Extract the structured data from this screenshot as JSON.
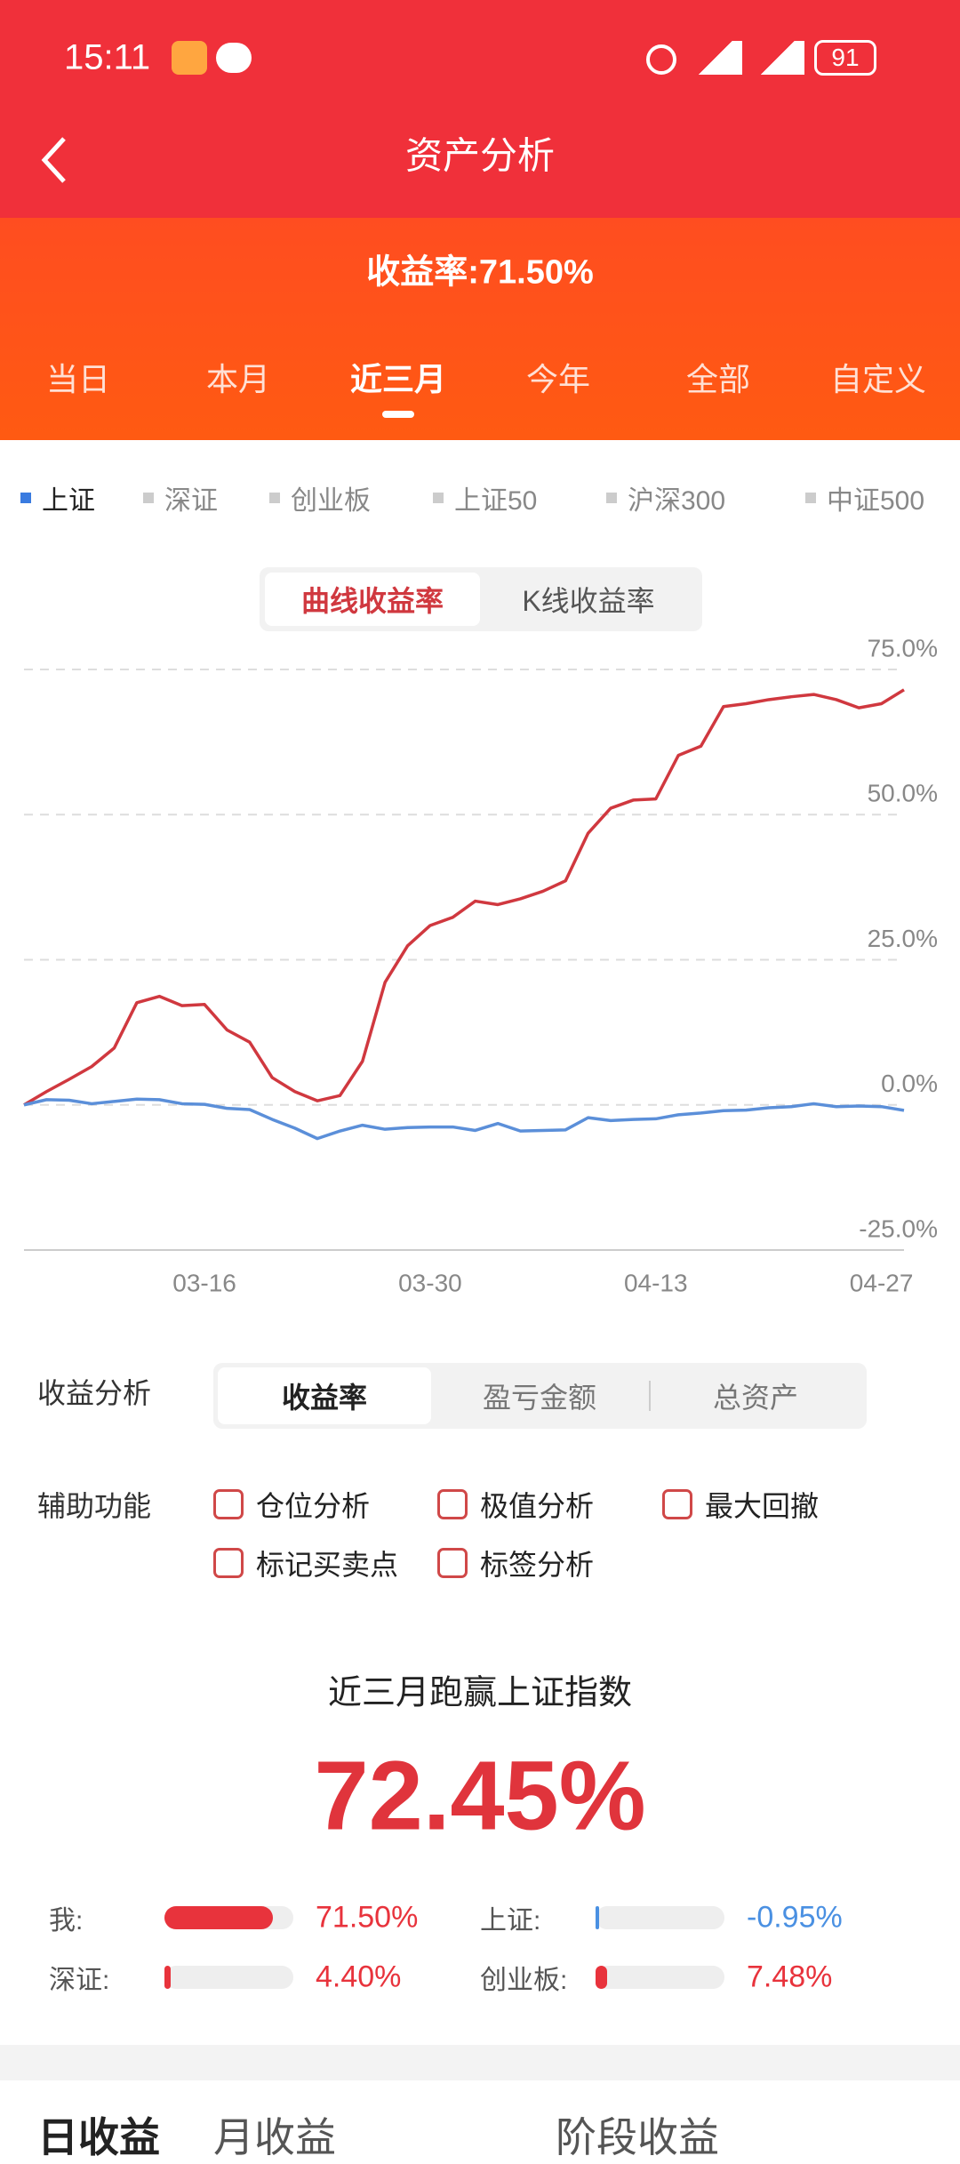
{
  "status_bar": {
    "time": "15:11",
    "battery": "91"
  },
  "header": {
    "title": "资产分析"
  },
  "summary": {
    "return_rate": "收益率:71.50%"
  },
  "period_tabs": {
    "items": [
      "当日",
      "本月",
      "近三月",
      "今年",
      "全部",
      "自定义"
    ],
    "active": 2
  },
  "index_legend": {
    "items": [
      "上证",
      "深证",
      "创业板",
      "上证50",
      "沪深300",
      "中证500"
    ],
    "active": 0
  },
  "chart_toggle": {
    "items": [
      "曲线收益率",
      "K线收益率"
    ],
    "active": 0
  },
  "chart_data": {
    "type": "line",
    "categories": [
      null,
      null,
      null,
      null,
      null,
      null,
      null,
      null,
      "03-16",
      null,
      null,
      null,
      null,
      null,
      null,
      null,
      null,
      null,
      "03-30",
      null,
      null,
      null,
      null,
      null,
      null,
      null,
      null,
      null,
      "04-13",
      null,
      null,
      null,
      null,
      null,
      null,
      null,
      null,
      null,
      "04-27",
      null
    ],
    "series": [
      {
        "color": "#d0383f",
        "values": [
          0,
          2.3,
          4.4,
          6.6,
          9.8,
          17.6,
          18.7,
          17.1,
          17.3,
          12.9,
          10.8,
          4.7,
          2.3,
          0.7,
          1.6,
          7.5,
          21.1,
          27.4,
          30.9,
          32.3,
          35.1,
          34.5,
          35.5,
          36.8,
          38.6,
          46.8,
          51.1,
          52.5,
          52.7,
          60.2,
          61.8,
          68.6,
          69.1,
          69.8,
          70.3,
          70.7,
          69.8,
          68.4,
          69.1,
          71.5
        ]
      },
      {
        "color": "#5b8fd9",
        "values": [
          0,
          0.9,
          0.8,
          0.2,
          0.6,
          1.0,
          0.9,
          0.2,
          0.1,
          -0.6,
          -0.8,
          -2.5,
          -4.0,
          -5.8,
          -4.5,
          -3.5,
          -4.2,
          -3.9,
          -3.8,
          -3.8,
          -4.4,
          -3.2,
          -4.5,
          -4.4,
          -4.3,
          -2.2,
          -2.7,
          -2.5,
          -2.4,
          -1.7,
          -1.4,
          -1.0,
          -0.9,
          -0.5,
          -0.3,
          0.2,
          -0.3,
          -0.2,
          -0.3,
          -0.95
        ]
      }
    ],
    "ylim": [
      -25,
      75
    ],
    "yticks": [
      {
        "value": 75,
        "label": "75.0%"
      },
      {
        "value": 50,
        "label": "50.0%"
      },
      {
        "value": 25,
        "label": "25.0%"
      },
      {
        "value": 0,
        "label": "0.0%"
      },
      {
        "value": -25,
        "label": "-25.0%"
      }
    ],
    "grid": true
  },
  "analysis": {
    "label": "收益分析",
    "options": [
      "收益率",
      "盈亏金额",
      "总资产"
    ],
    "active": 0
  },
  "aux": {
    "label": "辅助功能",
    "options": [
      "仓位分析",
      "极值分析",
      "最大回撤",
      "标记买卖点",
      "标签分析"
    ]
  },
  "outperform": {
    "title": "近三月跑赢上证指数",
    "value": "72.45%"
  },
  "comparison": {
    "items": [
      {
        "label": "我:",
        "value": 71.5,
        "value_label": "71.50%",
        "color": "#e8333c"
      },
      {
        "label": "上证:",
        "value": -0.95,
        "value_label": "-0.95%",
        "color": "#4a90e2"
      },
      {
        "label": "深证:",
        "value": 4.4,
        "value_label": "4.40%",
        "color": "#e8333c"
      },
      {
        "label": "创业板:",
        "value": 7.48,
        "value_label": "7.48%",
        "color": "#e8333c"
      }
    ]
  },
  "bottom_tabs": {
    "items": [
      "日收益",
      "月收益",
      "阶段收益"
    ]
  }
}
